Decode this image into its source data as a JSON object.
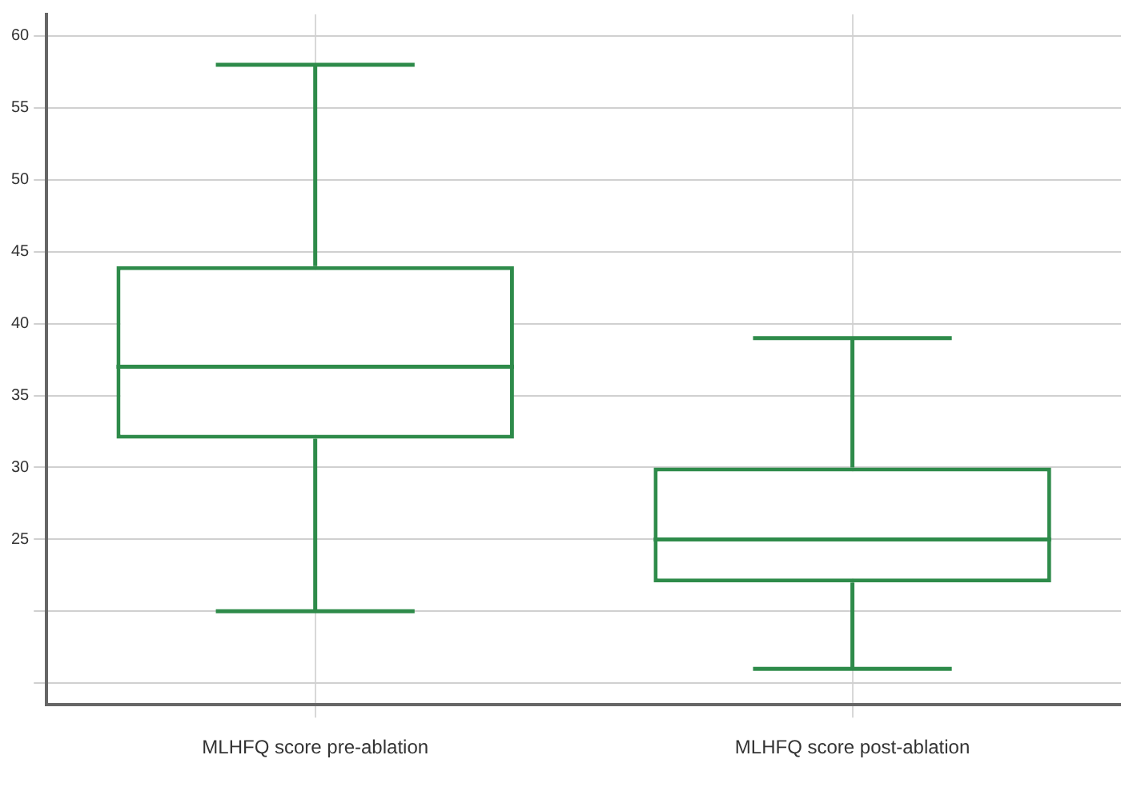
{
  "chart_data": {
    "type": "box",
    "categories": [
      "MLHFQ score pre-ablation",
      "MLHFQ score post-ablation"
    ],
    "series": [
      {
        "color": "#2e8b4a",
        "boxes": [
          {
            "low": 20,
            "q1": 32,
            "median": 37,
            "q3": 44,
            "high": 58
          },
          {
            "low": 16,
            "q1": 22,
            "median": 25,
            "q3": 30,
            "high": 39
          }
        ]
      }
    ],
    "ylim": [
      13.5,
      61.5
    ],
    "yticks": [
      60,
      55,
      50,
      45,
      40,
      35,
      30,
      25,
      {
        "value": 20,
        "label": null
      },
      {
        "value": 15,
        "label": null
      }
    ],
    "grid": true,
    "legend": false
  }
}
